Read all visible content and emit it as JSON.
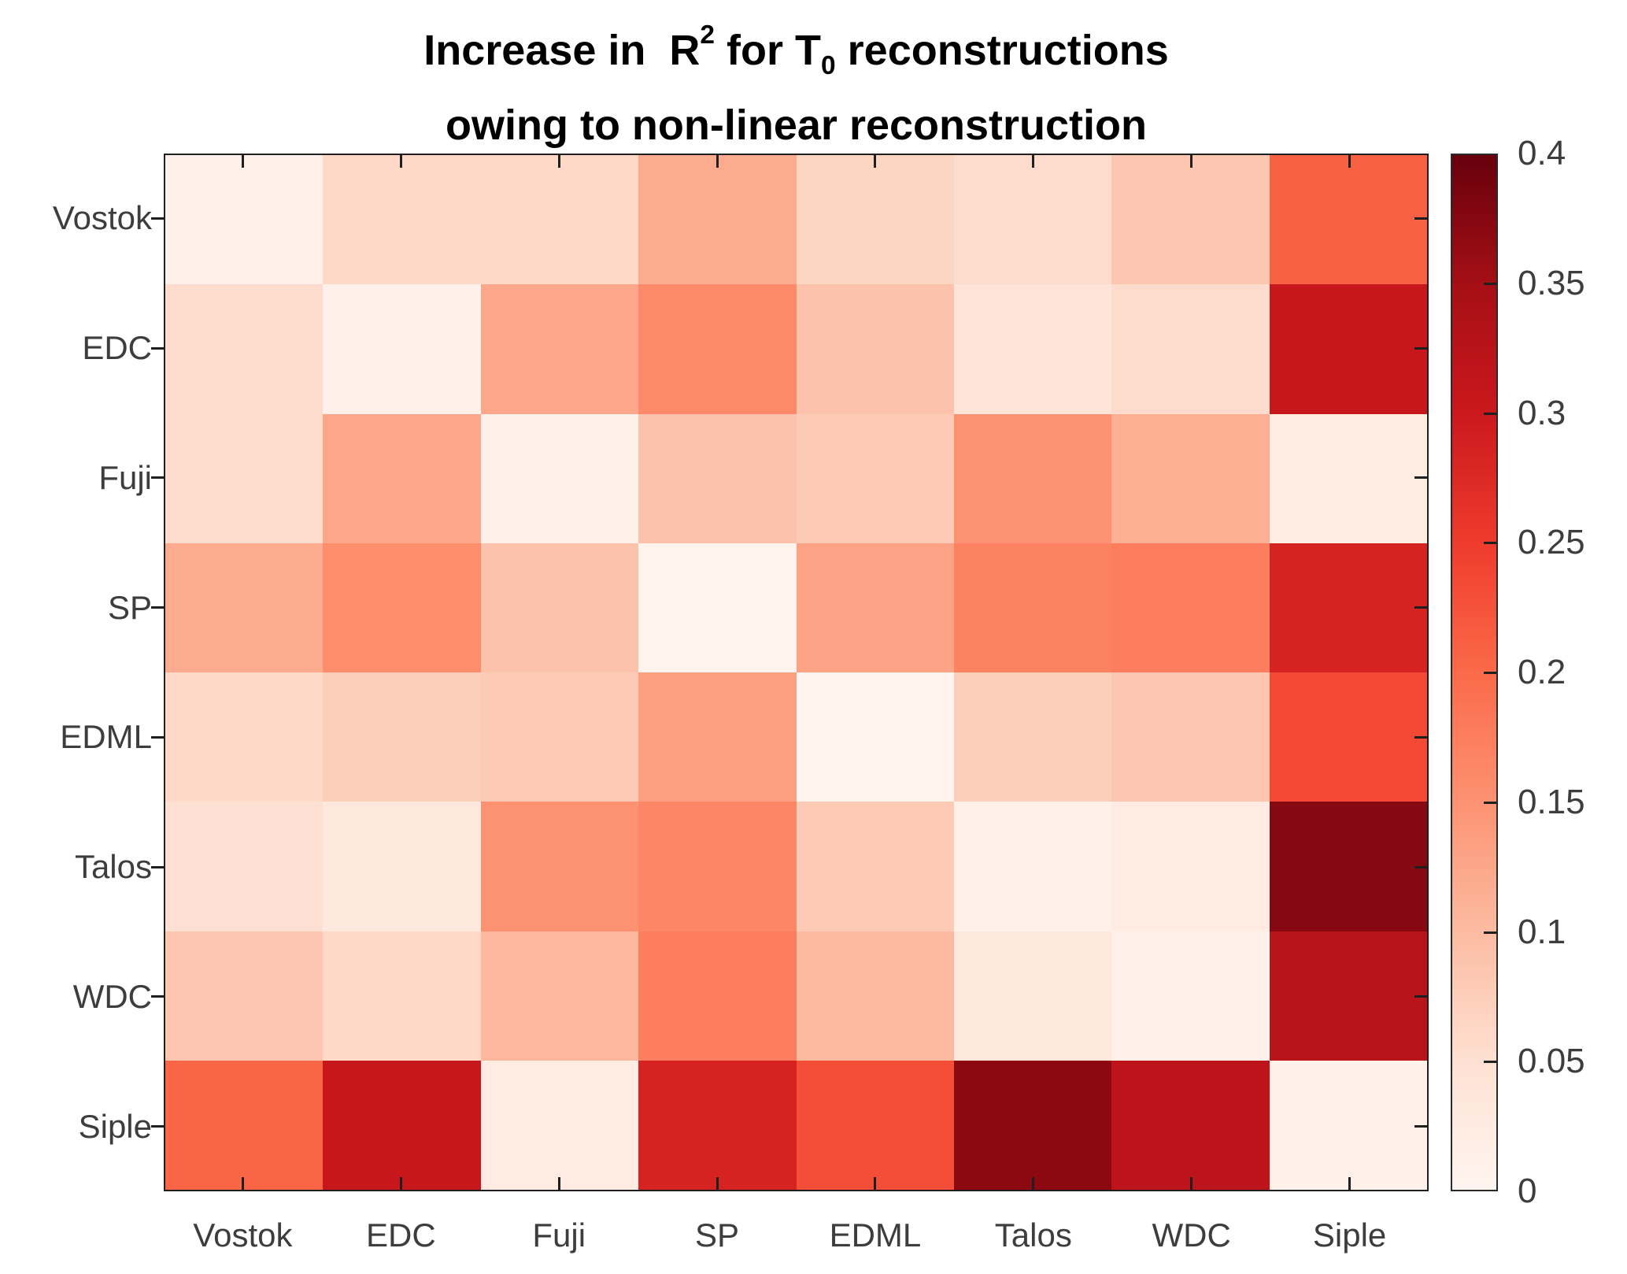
{
  "title": {
    "line1_prefix": "Increase in  R",
    "line1_sup": "2",
    "line1_mid": " for T",
    "line1_sub": "0",
    "line1_suffix": " reconstructions",
    "line2": "owing to non-linear reconstruction"
  },
  "colors": {
    "axis": "#1f1f1f",
    "label": "#3d3d3d",
    "title": "#000000",
    "background": "#ffffff"
  },
  "chart_data": {
    "type": "heatmap",
    "title": "Increase in R^2 for T_0 reconstructions owing to non-linear reconstruction",
    "x_categories": [
      "Vostok",
      "EDC",
      "Fuji",
      "SP",
      "EDML",
      "Talos",
      "WDC",
      "Siple"
    ],
    "y_categories": [
      "Vostok",
      "EDC",
      "Fuji",
      "SP",
      "EDML",
      "Talos",
      "WDC",
      "Siple"
    ],
    "values": [
      [
        0.01,
        0.06,
        0.06,
        0.12,
        0.065,
        0.055,
        0.085,
        0.21
      ],
      [
        0.055,
        0.01,
        0.125,
        0.16,
        0.09,
        0.04,
        0.055,
        0.305
      ],
      [
        0.055,
        0.125,
        0.01,
        0.09,
        0.08,
        0.15,
        0.115,
        0.02
      ],
      [
        0.12,
        0.155,
        0.09,
        0.005,
        0.13,
        0.17,
        0.175,
        0.285
      ],
      [
        0.06,
        0.075,
        0.08,
        0.135,
        0.005,
        0.075,
        0.085,
        0.235
      ],
      [
        0.05,
        0.03,
        0.15,
        0.165,
        0.08,
        0.01,
        0.025,
        0.375
      ],
      [
        0.085,
        0.06,
        0.105,
        0.175,
        0.1,
        0.03,
        0.01,
        0.325
      ],
      [
        0.205,
        0.305,
        0.025,
        0.285,
        0.23,
        0.37,
        0.32,
        0.01
      ]
    ],
    "colorbar": {
      "min": 0,
      "max": 0.4,
      "ticks": [
        0,
        0.05,
        0.1,
        0.15,
        0.2,
        0.25,
        0.3,
        0.35,
        0.4
      ],
      "tick_labels": [
        "0",
        "0.05",
        "0.1",
        "0.15",
        "0.2",
        "0.25",
        "0.3",
        "0.35",
        "0.4"
      ],
      "position": "right"
    },
    "colormap": {
      "name": "Reds",
      "anchors": [
        "#fff5f0",
        "#fee0d2",
        "#fcbba1",
        "#fc9272",
        "#fb6a4a",
        "#ef3b2c",
        "#cb181d",
        "#a50f15",
        "#67000d"
      ]
    },
    "grid": false,
    "legend": false
  }
}
